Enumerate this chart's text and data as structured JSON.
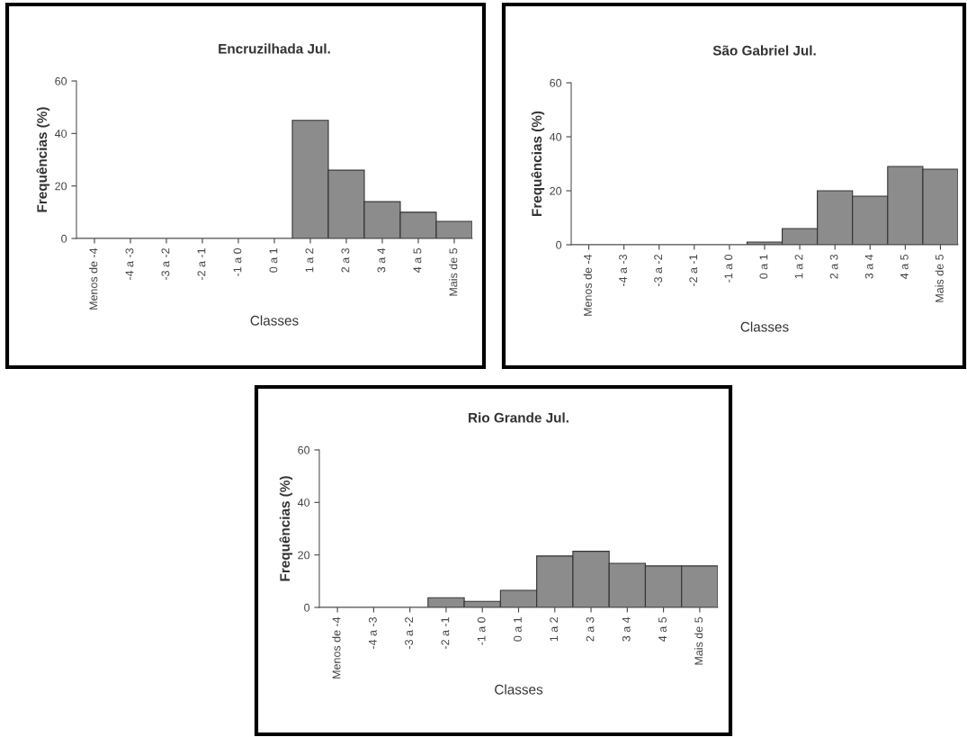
{
  "chart_data": [
    {
      "type": "bar",
      "title": "Encruzilhada Jul.",
      "xlabel": "Classes",
      "ylabel": "Frequências (%)",
      "categories": [
        "Menos de -4",
        "-4 a -3",
        "-3 a -2",
        "-2 a -1",
        "-1 a 0",
        "0 a 1",
        "1 a 2",
        "2 a 3",
        "3 a 4",
        "4 a 5",
        "Mais de 5"
      ],
      "values": [
        0,
        0,
        0,
        0,
        0,
        0,
        45,
        26,
        14,
        10,
        6.5
      ],
      "color": "#8c8c8c",
      "ylim": [
        0,
        60
      ],
      "yticks": [
        0,
        20,
        40,
        60
      ],
      "grid": false
    },
    {
      "type": "bar",
      "title": "São Gabriel Jul.",
      "xlabel": "Classes",
      "ylabel": "Frequências (%)",
      "categories": [
        "Menos de -4",
        "-4 a -3",
        "-3 a -2",
        "-2 a -1",
        "-1 a 0",
        "0 a 1",
        "1 a 2",
        "2 a 3",
        "3 a 4",
        "4 a 5",
        "Mais de 5"
      ],
      "values": [
        0,
        0,
        0,
        0,
        0,
        1,
        6,
        20,
        18,
        29,
        28
      ],
      "color": "#8c8c8c",
      "ylim": [
        0,
        60
      ],
      "yticks": [
        0,
        20,
        40,
        60
      ],
      "grid": false
    },
    {
      "type": "bar",
      "title": "Rio Grande Jul.",
      "xlabel": "Classes",
      "ylabel": "Frequências (%)",
      "categories": [
        "Menos de -4",
        "-4 a -3",
        "-3 a -2",
        "-2 a -1",
        "-1 a 0",
        "0 a 1",
        "1 a 2",
        "2 a 3",
        "3 a 4",
        "4 a 5",
        "Mais de 5"
      ],
      "values": [
        0,
        0,
        0,
        3.7,
        2.3,
        6.5,
        19.6,
        21.4,
        16.8,
        15.8,
        15.8
      ],
      "color": "#8c8c8c",
      "ylim": [
        0,
        60
      ],
      "yticks": [
        0,
        20,
        40,
        60
      ],
      "grid": false
    }
  ]
}
